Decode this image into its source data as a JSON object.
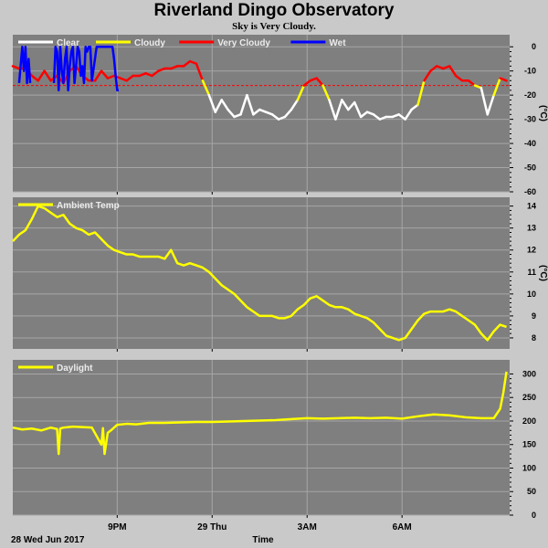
{
  "title": "Riverland Dingo Observatory",
  "subtitle": "Sky is Very Cloudy.",
  "colors": {
    "background": "#c9c9c9",
    "panel": "#7f7f7f",
    "grid": "#a6a6a6",
    "clear": "#ffffff",
    "cloudy": "#ffff00",
    "very_cloudy": "#ff0000",
    "wet": "#0000ff",
    "threshold": "#ff0000"
  },
  "chart_data": [
    {
      "type": "line",
      "panel": "sky",
      "legend": [
        {
          "name": "Clear",
          "color": "#ffffff"
        },
        {
          "name": "Cloudy",
          "color": "#ffff00"
        },
        {
          "name": "Very Cloudy",
          "color": "#ff0000"
        },
        {
          "name": "Wet",
          "color": "#0000ff"
        }
      ],
      "ylabel": "(°C)",
      "yticks": [
        "0",
        "-10",
        "-20",
        "-30",
        "-40",
        "-50",
        "-60"
      ],
      "ylim": [
        -60,
        5
      ],
      "threshold": -16,
      "x_hours": [
        17.7,
        17.9,
        18.1,
        18.3,
        18.5,
        18.7,
        18.9,
        19.1,
        19.3,
        19.5,
        19.7,
        19.9,
        20.1,
        20.3,
        20.5,
        20.7,
        20.9,
        21.1,
        21.3,
        21.5,
        21.7,
        21.9,
        22.1,
        22.3,
        22.5,
        22.7,
        22.9,
        23.1,
        23.3,
        23.5,
        23.7,
        23.9,
        24.1,
        24.3,
        24.5,
        24.7,
        24.9,
        25.1,
        25.3,
        25.5,
        25.7,
        25.9,
        26.1,
        26.3,
        26.5,
        26.7,
        26.9,
        27.1,
        27.3,
        27.5,
        27.7,
        27.9,
        28.1,
        28.3,
        28.5,
        28.7,
        28.9,
        29.1,
        29.3,
        29.5,
        29.7,
        29.9,
        30.1,
        30.3,
        30.5,
        30.7,
        30.9,
        31.1,
        31.3,
        31.5,
        31.7,
        31.9,
        32.1,
        32.3,
        32.5,
        32.7,
        32.9,
        33.1,
        33.3
      ],
      "sky_temp": [
        -8,
        -9,
        -9,
        -12,
        -14,
        -10,
        -14,
        -12,
        -15,
        -10,
        -8,
        -12,
        -14,
        -14,
        -10,
        -13,
        -12,
        -13,
        -14,
        -12,
        -12,
        -11,
        -12,
        -10,
        -9,
        -9,
        -8,
        -8,
        -6,
        -7,
        -14,
        -20,
        -27,
        -22,
        -26,
        -29,
        -28,
        -20,
        -28,
        -26,
        -27,
        -28,
        -30,
        -29,
        -26,
        -22,
        -16,
        -14,
        -13,
        -16,
        -22,
        -30,
        -22,
        -26,
        -23,
        -29,
        -27,
        -28,
        -30,
        -29,
        -29,
        -28,
        -30,
        -26,
        -24,
        -14,
        -10,
        -8,
        -9,
        -8,
        -12,
        -14,
        -14,
        -16,
        -17,
        -28,
        -20,
        -13,
        -14
      ],
      "wet_segments": [
        {
          "x": [
            17.9,
            18.0,
            18.05,
            18.1,
            18.15,
            18.2,
            18.25
          ],
          "y": [
            -15,
            0,
            -10,
            0,
            -15,
            -5,
            -15
          ]
        },
        {
          "x": [
            19.0,
            19.05,
            19.1,
            19.15,
            19.2,
            19.25,
            19.3,
            19.35,
            19.4,
            19.45,
            19.5,
            19.55,
            19.6,
            19.65,
            19.7,
            19.75,
            19.8,
            19.85,
            19.9,
            19.95,
            20.0,
            20.05,
            20.1,
            20.15,
            20.2,
            20.35,
            20.5,
            20.7,
            20.85,
            20.9,
            20.95,
            21.0,
            21.05
          ],
          "y": [
            -15,
            0,
            -2,
            -18,
            0,
            -10,
            -15,
            -5,
            0,
            -18,
            -8,
            -2,
            0,
            -15,
            -8,
            0,
            -2,
            -12,
            -8,
            -15,
            0,
            -2,
            0,
            0,
            -14,
            0,
            0,
            0,
            0,
            -5,
            -12,
            -18,
            -18
          ]
        }
      ]
    },
    {
      "type": "line",
      "panel": "ambient",
      "legend": [
        {
          "name": "Ambient Temp",
          "color": "#ffff00"
        }
      ],
      "ylabel": "(°C)",
      "yticks": [
        "14",
        "13",
        "12",
        "11",
        "10",
        "9",
        "8"
      ],
      "ylim": [
        7.5,
        14.4
      ],
      "x_hours": [
        17.7,
        17.9,
        18.1,
        18.3,
        18.5,
        18.7,
        18.9,
        19.1,
        19.3,
        19.5,
        19.7,
        19.9,
        20.1,
        20.3,
        20.5,
        20.7,
        20.9,
        21.1,
        21.3,
        21.5,
        21.7,
        21.9,
        22.1,
        22.3,
        22.5,
        22.7,
        22.9,
        23.1,
        23.3,
        23.5,
        23.7,
        23.9,
        24.1,
        24.3,
        24.5,
        24.7,
        24.9,
        25.1,
        25.3,
        25.5,
        25.7,
        25.9,
        26.1,
        26.3,
        26.5,
        26.7,
        26.9,
        27.1,
        27.3,
        27.5,
        27.7,
        27.9,
        28.1,
        28.3,
        28.5,
        28.7,
        28.9,
        29.1,
        29.3,
        29.5,
        29.7,
        29.9,
        30.1,
        30.3,
        30.5,
        30.7,
        30.9,
        31.1,
        31.3,
        31.5,
        31.7,
        31.9,
        32.1,
        32.3,
        32.5,
        32.7,
        32.9,
        33.1,
        33.3
      ],
      "values": [
        12.4,
        12.7,
        12.9,
        13.4,
        14.0,
        13.9,
        13.7,
        13.5,
        13.6,
        13.2,
        13.0,
        12.9,
        12.7,
        12.8,
        12.5,
        12.2,
        12.0,
        11.9,
        11.8,
        11.8,
        11.7,
        11.7,
        11.7,
        11.7,
        11.6,
        12.0,
        11.4,
        11.3,
        11.4,
        11.3,
        11.2,
        11.0,
        10.7,
        10.4,
        10.2,
        10.0,
        9.7,
        9.4,
        9.2,
        9.0,
        9.0,
        9.0,
        8.9,
        8.9,
        9.0,
        9.3,
        9.5,
        9.8,
        9.9,
        9.7,
        9.5,
        9.4,
        9.4,
        9.3,
        9.1,
        9.0,
        8.9,
        8.7,
        8.4,
        8.1,
        8.0,
        7.9,
        8.0,
        8.4,
        8.8,
        9.1,
        9.2,
        9.2,
        9.2,
        9.3,
        9.2,
        9.0,
        8.8,
        8.6,
        8.2,
        7.9,
        8.3,
        8.6,
        8.5
      ]
    },
    {
      "type": "line",
      "panel": "daylight",
      "legend": [
        {
          "name": "Daylight",
          "color": "#ffff00"
        }
      ],
      "yticks": [
        "300",
        "250",
        "200",
        "150",
        "100",
        "50",
        "0"
      ],
      "ylim": [
        0,
        330
      ],
      "x_hours": [
        17.7,
        18.0,
        18.3,
        18.6,
        18.9,
        19.1,
        19.15,
        19.2,
        19.3,
        19.6,
        19.9,
        20.2,
        20.5,
        20.55,
        20.6,
        20.7,
        20.8,
        21.0,
        21.3,
        21.6,
        22.0,
        22.5,
        23.0,
        23.5,
        24.0,
        24.5,
        25.0,
        25.5,
        26.0,
        26.5,
        27.0,
        27.5,
        28.0,
        28.5,
        29.0,
        29.5,
        30.0,
        30.5,
        31.0,
        31.5,
        32.0,
        32.5,
        32.9,
        33.1,
        33.2,
        33.3
      ],
      "values": [
        186,
        182,
        184,
        180,
        186,
        183,
        130,
        184,
        186,
        188,
        187,
        186,
        150,
        185,
        130,
        175,
        180,
        192,
        194,
        193,
        196,
        196,
        197,
        198,
        198,
        199,
        200,
        201,
        202,
        204,
        206,
        205,
        206,
        207,
        206,
        207,
        205,
        210,
        214,
        212,
        208,
        206,
        206,
        226,
        260,
        305
      ]
    }
  ],
  "x_axis": {
    "label": "Time",
    "date_label": "28 Wed Jun 2017",
    "ticks": [
      {
        "hour": 21,
        "label": "9PM"
      },
      {
        "hour": 24,
        "label": "29 Thu"
      },
      {
        "hour": 27,
        "label": "3AM"
      },
      {
        "hour": 30,
        "label": "6AM"
      }
    ],
    "range_hours": [
      17.7,
      33.4
    ]
  }
}
